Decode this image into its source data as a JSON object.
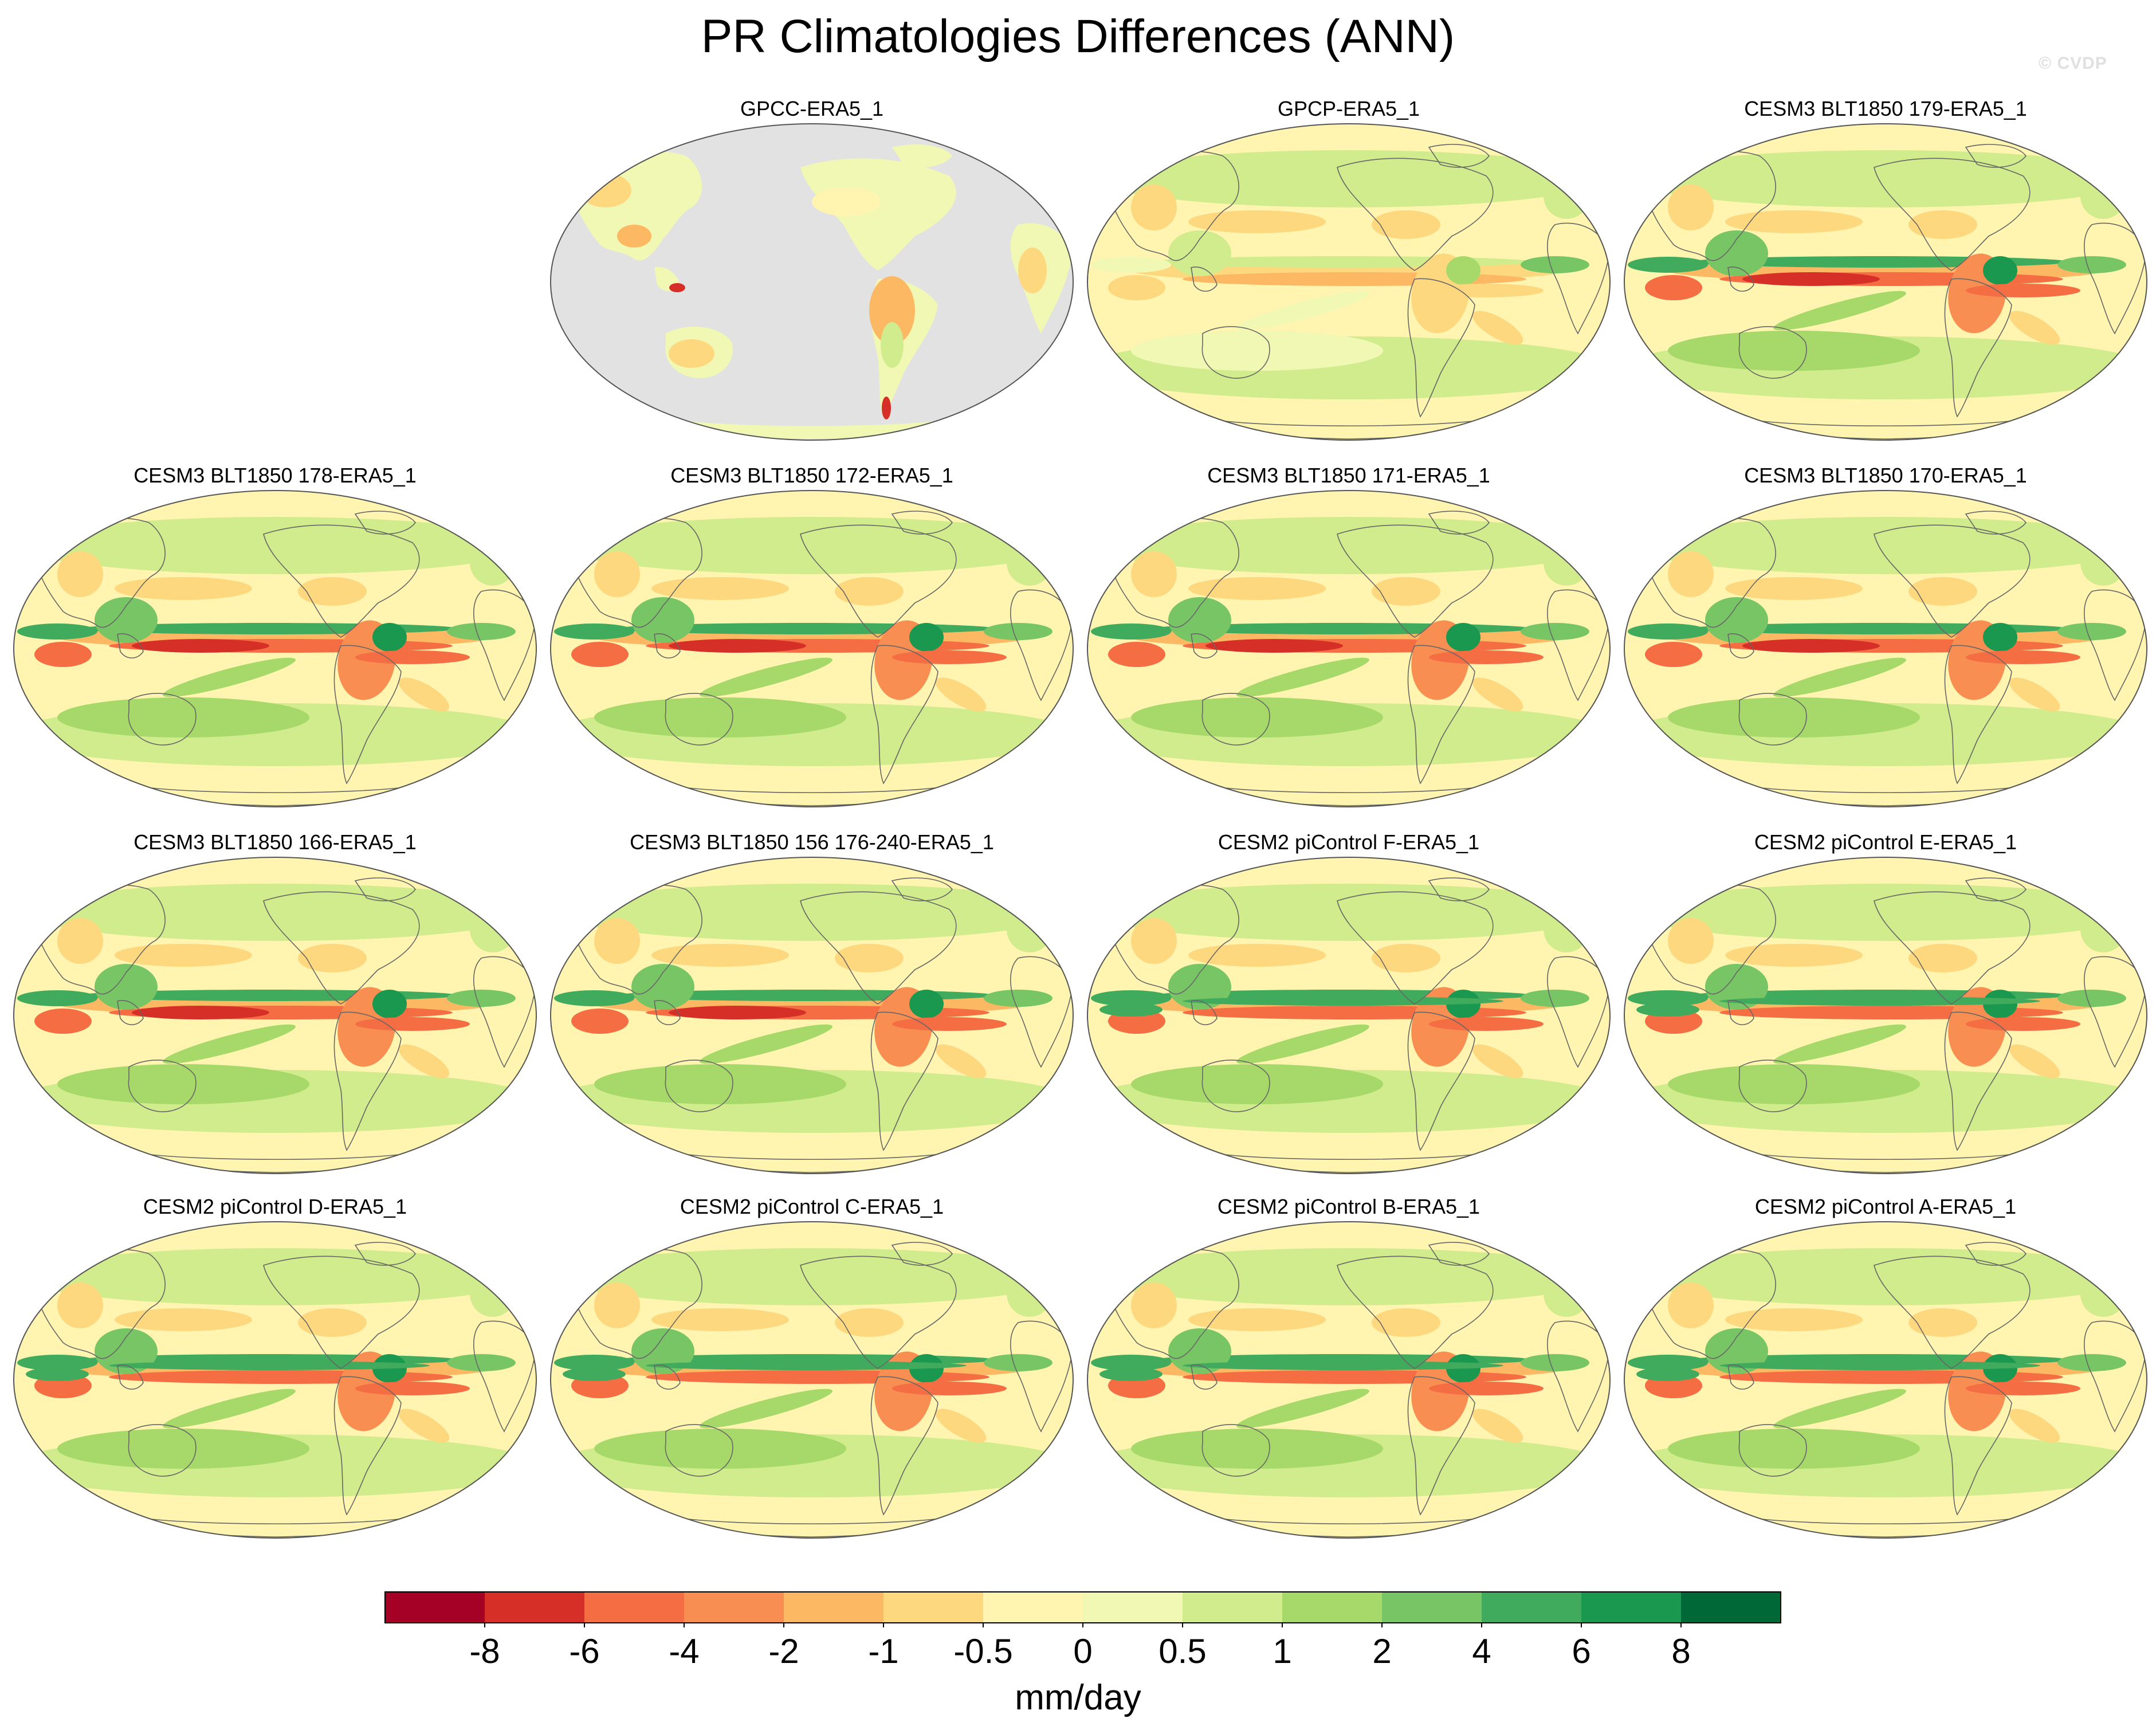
{
  "title": "PR Climatologies Differences (ANN)",
  "watermark": "© CVDP",
  "colorbar": {
    "units": "mm/day",
    "tick_labels": [
      "-8",
      "-6",
      "-4",
      "-2",
      "-1",
      "-0.5",
      "0",
      "0.5",
      "1",
      "2",
      "4",
      "6",
      "8"
    ],
    "colors": [
      "#a50026",
      "#d62f27",
      "#f46d43",
      "#f88e52",
      "#fdb863",
      "#fed87f",
      "#fff4b0",
      "#f1f8b4",
      "#d1ec8c",
      "#a6d96a",
      "#78c566",
      "#41ab5d",
      "#1a9850",
      "#006837"
    ]
  },
  "ocean_masked_color": "#e2e2e2",
  "panels": [
    {
      "title": "GPCC-ERA5_1",
      "variant": "land-only"
    },
    {
      "title": "GPCP-ERA5_1",
      "variant": "obs"
    },
    {
      "title": "CESM3 BLT1850 179-ERA5_1",
      "variant": "cesm3"
    },
    {
      "title": "CESM3 BLT1850 178-ERA5_1",
      "variant": "cesm3"
    },
    {
      "title": "CESM3 BLT1850 172-ERA5_1",
      "variant": "cesm3"
    },
    {
      "title": "CESM3 BLT1850 171-ERA5_1",
      "variant": "cesm3"
    },
    {
      "title": "CESM3 BLT1850 170-ERA5_1",
      "variant": "cesm3"
    },
    {
      "title": "CESM3 BLT1850 166-ERA5_1",
      "variant": "cesm3"
    },
    {
      "title": "CESM3 BLT1850 156 176-240-ERA5_1",
      "variant": "cesm3"
    },
    {
      "title": "CESM2 piControl F-ERA5_1",
      "variant": "cesm2"
    },
    {
      "title": "CESM2 piControl E-ERA5_1",
      "variant": "cesm2"
    },
    {
      "title": "CESM2 piControl D-ERA5_1",
      "variant": "cesm2"
    },
    {
      "title": "CESM2 piControl C-ERA5_1",
      "variant": "cesm2"
    },
    {
      "title": "CESM2 piControl B-ERA5_1",
      "variant": "cesm2"
    },
    {
      "title": "CESM2 piControl A-ERA5_1",
      "variant": "cesm2"
    }
  ]
}
